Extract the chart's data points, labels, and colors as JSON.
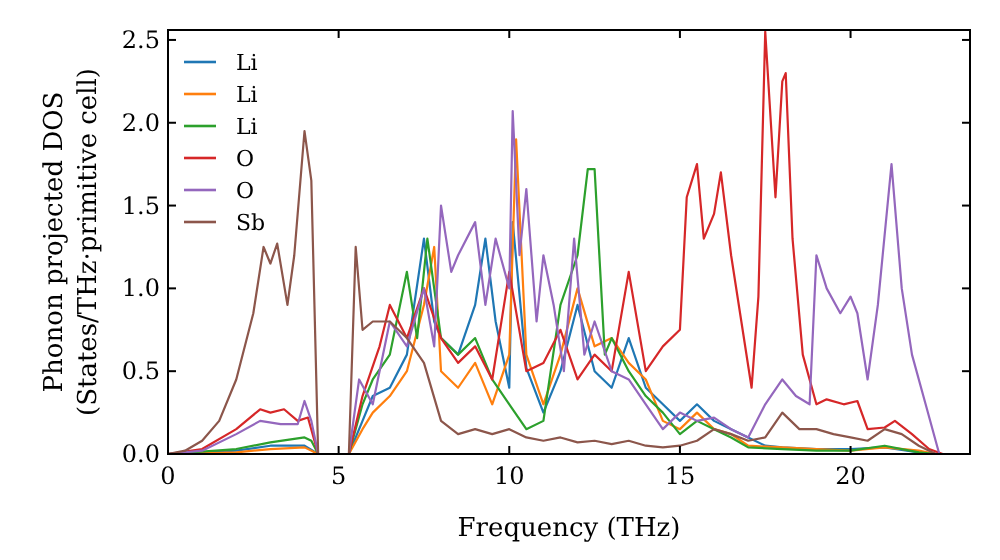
{
  "chart_data": {
    "type": "line",
    "xlabel": "Frequency (THz)",
    "ylabel": "Phonon projected DOS\n(States/THz·primitive cell)",
    "xlim": [
      0,
      23.5
    ],
    "ylim": [
      0,
      2.56
    ],
    "xticks": [
      0,
      5,
      10,
      15,
      20
    ],
    "yticks": [
      {
        "value": 0,
        "label": "0.0"
      },
      {
        "value": 0.5,
        "label": "0.5"
      },
      {
        "value": 1,
        "label": "1.0"
      },
      {
        "value": 1.5,
        "label": "1.5"
      },
      {
        "value": 2,
        "label": "2.0"
      },
      {
        "value": 2.5,
        "label": "2.5"
      }
    ],
    "legend": "top left",
    "grid": false,
    "marker": "none",
    "line_style": "solid",
    "series": [
      {
        "name": "Li",
        "color": "#1f77b4",
        "x": [
          0,
          2,
          3,
          4,
          4.4,
          5.3,
          5.7,
          6,
          6.5,
          7,
          7.5,
          7.8,
          8,
          8.5,
          9,
          9.3,
          9.6,
          10,
          10.1,
          10.5,
          11,
          11.5,
          12,
          12.5,
          13,
          13.5,
          14,
          14.5,
          15,
          15.5,
          16,
          16.5,
          17,
          17.5,
          18,
          19,
          20,
          21,
          22,
          22.5
        ],
        "values": [
          0,
          0.02,
          0.05,
          0.05,
          0,
          0,
          0.2,
          0.35,
          0.4,
          0.6,
          1.3,
          0.8,
          0.7,
          0.6,
          0.9,
          1.3,
          0.8,
          0.4,
          1.4,
          0.52,
          0.25,
          0.5,
          0.9,
          0.5,
          0.4,
          0.7,
          0.4,
          0.3,
          0.2,
          0.3,
          0.2,
          0.15,
          0.1,
          0.05,
          0.04,
          0.03,
          0.03,
          0.04,
          0.01,
          0
        ]
      },
      {
        "name": "Li",
        "color": "#ff7f0e",
        "x": [
          0,
          2,
          3,
          4,
          4.4,
          5.3,
          5.7,
          6,
          6.5,
          7,
          7.5,
          7.8,
          8,
          8.5,
          9,
          9.5,
          10,
          10.2,
          10.5,
          11,
          11.5,
          12,
          12.5,
          13,
          13.5,
          14,
          14.5,
          15,
          15.5,
          16,
          16.5,
          17,
          18,
          19,
          20,
          21,
          22,
          22.5
        ],
        "values": [
          0,
          0.01,
          0.03,
          0.04,
          0,
          0,
          0.15,
          0.25,
          0.35,
          0.5,
          0.9,
          1.25,
          0.5,
          0.4,
          0.55,
          0.3,
          0.6,
          1.9,
          0.6,
          0.3,
          0.6,
          1.0,
          0.65,
          0.7,
          0.55,
          0.45,
          0.2,
          0.15,
          0.25,
          0.15,
          0.12,
          0.05,
          0.04,
          0.03,
          0.02,
          0.04,
          0.02,
          0
        ]
      },
      {
        "name": "Li",
        "color": "#2ca02c",
        "x": [
          0,
          2,
          3,
          4,
          4.2,
          4.4,
          5.3,
          5.7,
          6,
          6.5,
          7,
          7.3,
          7.6,
          8,
          8.5,
          9,
          9.5,
          10,
          10.5,
          11,
          11.5,
          12,
          12.3,
          12.5,
          12.8,
          13,
          13.5,
          14,
          14.5,
          15,
          15.5,
          16,
          16.5,
          17,
          18,
          19,
          20,
          21,
          22,
          22.5
        ],
        "values": [
          0,
          0.03,
          0.07,
          0.1,
          0.08,
          0,
          0,
          0.3,
          0.45,
          0.6,
          1.1,
          0.7,
          1.3,
          0.7,
          0.6,
          0.7,
          0.45,
          0.3,
          0.15,
          0.2,
          0.9,
          1.2,
          1.72,
          1.72,
          0.6,
          0.7,
          0.5,
          0.35,
          0.25,
          0.12,
          0.2,
          0.15,
          0.1,
          0.04,
          0.03,
          0.02,
          0.02,
          0.05,
          0.01,
          0
        ]
      },
      {
        "name": "O",
        "color": "#d62728",
        "x": [
          0,
          1,
          2,
          2.7,
          3,
          3.4,
          3.8,
          4.1,
          4.4,
          5.3,
          5.7,
          6.2,
          6.5,
          7,
          7.5,
          8,
          8.5,
          9,
          9.5,
          10,
          10.5,
          11,
          11.5,
          12,
          12.5,
          13,
          13.5,
          14,
          14.5,
          15,
          15.2,
          15.5,
          15.7,
          16,
          16.2,
          16.5,
          16.8,
          17.1,
          17.3,
          17.5,
          17.8,
          18,
          18.1,
          18.3,
          18.6,
          19,
          19.3,
          19.8,
          20.2,
          20.5,
          21,
          21.3,
          21.8,
          22.3,
          22.7
        ],
        "values": [
          0,
          0.03,
          0.15,
          0.27,
          0.25,
          0.27,
          0.2,
          0.22,
          0,
          0,
          0.35,
          0.65,
          0.9,
          0.7,
          1.0,
          0.7,
          0.55,
          0.65,
          0.45,
          1.1,
          0.5,
          0.55,
          0.75,
          0.45,
          0.6,
          0.5,
          1.1,
          0.5,
          0.65,
          0.75,
          1.55,
          1.75,
          1.3,
          1.45,
          1.7,
          1.2,
          0.8,
          0.4,
          0.95,
          2.55,
          1.55,
          2.25,
          2.3,
          1.3,
          0.6,
          0.3,
          0.33,
          0.3,
          0.32,
          0.15,
          0.16,
          0.2,
          0.12,
          0.03,
          0
        ]
      },
      {
        "name": "O",
        "color": "#9467bd",
        "x": [
          0,
          1,
          2,
          2.7,
          3.3,
          3.8,
          4,
          4.2,
          4.4,
          5.3,
          5.6,
          6,
          6.5,
          7,
          7.5,
          7.8,
          8,
          8.3,
          8.5,
          9,
          9.3,
          9.6,
          10,
          10.1,
          10.3,
          10.5,
          10.8,
          11,
          11.3,
          11.6,
          11.9,
          12.2,
          12.5,
          13,
          13.5,
          14,
          14.5,
          15,
          15.5,
          16,
          16.5,
          17,
          17.5,
          18,
          18.4,
          18.8,
          19,
          19.3,
          19.7,
          20,
          20.2,
          20.5,
          20.8,
          21.2,
          21.5,
          21.8,
          22.2,
          22.6
        ],
        "values": [
          0,
          0.02,
          0.12,
          0.2,
          0.18,
          0.18,
          0.32,
          0.2,
          0,
          0,
          0.45,
          0.3,
          0.8,
          0.65,
          1.0,
          0.65,
          1.5,
          1.1,
          1.2,
          1.4,
          0.9,
          1.3,
          1.0,
          2.07,
          1.2,
          1.6,
          0.8,
          1.2,
          0.9,
          0.5,
          1.3,
          0.6,
          0.8,
          0.5,
          0.45,
          0.3,
          0.15,
          0.25,
          0.2,
          0.22,
          0.15,
          0.1,
          0.3,
          0.45,
          0.35,
          0.3,
          1.2,
          1.0,
          0.85,
          0.95,
          0.85,
          0.45,
          0.9,
          1.75,
          1.0,
          0.6,
          0.3,
          0
        ]
      },
      {
        "name": "Sb",
        "color": "#8c564b",
        "x": [
          0,
          0.5,
          1,
          1.5,
          2,
          2.5,
          2.8,
          3,
          3.2,
          3.5,
          3.7,
          4,
          4.2,
          4.4,
          5.3,
          5.5,
          5.7,
          6,
          6.5,
          7,
          7.5,
          8,
          8.5,
          9,
          9.5,
          10,
          10.5,
          11,
          11.5,
          12,
          12.5,
          13,
          13.5,
          14,
          14.5,
          15,
          15.5,
          16,
          16.5,
          17,
          17.5,
          18,
          18.5,
          19,
          19.5,
          20,
          20.5,
          21,
          21.5,
          22,
          22.5
        ],
        "values": [
          0,
          0.02,
          0.08,
          0.2,
          0.45,
          0.85,
          1.25,
          1.15,
          1.27,
          0.9,
          1.2,
          1.95,
          1.65,
          0,
          0,
          1.25,
          0.75,
          0.8,
          0.8,
          0.7,
          0.55,
          0.2,
          0.12,
          0.15,
          0.12,
          0.15,
          0.1,
          0.08,
          0.1,
          0.07,
          0.08,
          0.06,
          0.08,
          0.05,
          0.04,
          0.05,
          0.08,
          0.15,
          0.12,
          0.08,
          0.1,
          0.25,
          0.15,
          0.15,
          0.12,
          0.1,
          0.08,
          0.15,
          0.12,
          0.05,
          0
        ]
      }
    ]
  }
}
